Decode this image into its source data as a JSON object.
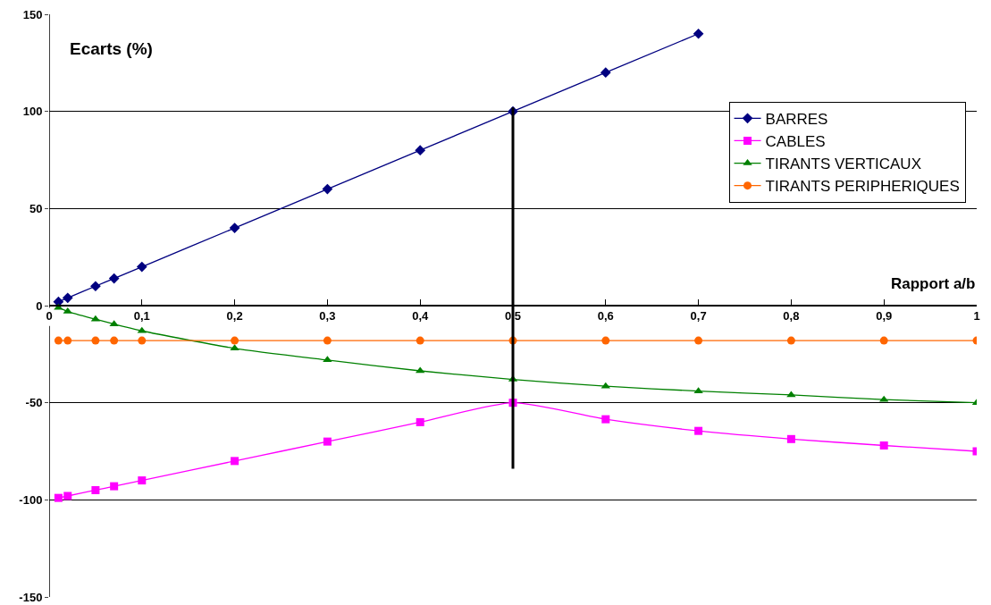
{
  "chart_data": {
    "type": "line",
    "xlabel": "Rapport a/b",
    "ylabel": "Ecarts (%)",
    "x": [
      0.01,
      0.02,
      0.05,
      0.07,
      0.1,
      0.2,
      0.3,
      0.4,
      0.5,
      0.6,
      0.7,
      0.8,
      0.9,
      1
    ],
    "series": [
      {
        "name": "BARRES",
        "color": "#000080",
        "marker": "diamond",
        "x": [
          0.01,
          0.02,
          0.05,
          0.07,
          0.1,
          0.2,
          0.3,
          0.4,
          0.5,
          0.6,
          0.7
        ],
        "values": [
          2,
          4,
          10,
          14,
          20,
          40,
          60,
          80,
          100,
          120,
          140
        ]
      },
      {
        "name": "CABLES",
        "color": "#ff00ff",
        "marker": "square",
        "values": [
          -99,
          -98,
          -95,
          -93,
          -90,
          -80,
          -70,
          -60,
          -50,
          -58.5,
          -64.5,
          -68.7,
          -72,
          -75
        ]
      },
      {
        "name": "TIRANTS VERTICAUX",
        "color": "#008000",
        "marker": "triangle",
        "values": [
          -1,
          -3,
          -7,
          -9.5,
          -13,
          -22,
          -28,
          -33.6,
          -38,
          -41.5,
          -44,
          -46,
          -48.4,
          -50
        ]
      },
      {
        "name": "TIRANTS PERIPHERIQUES",
        "color": "#ff6600",
        "marker": "circle",
        "values": [
          -18,
          -18,
          -18,
          -18,
          -18,
          -18,
          -18,
          -18,
          -18,
          -18,
          -18,
          -18,
          -18,
          -18
        ]
      }
    ],
    "xlim": [
      0,
      1
    ],
    "xticks": [
      0,
      {
        "value": 0.1,
        "label": "0,1"
      },
      {
        "value": 0.2,
        "label": "0,2"
      },
      {
        "value": 0.3,
        "label": "0,3"
      },
      {
        "value": 0.4,
        "label": "0,4"
      },
      {
        "value": 0.5,
        "label": "0,5"
      },
      {
        "value": 0.6,
        "label": "0,6"
      },
      {
        "value": 0.7,
        "label": "0,7"
      },
      {
        "value": 0.8,
        "label": "0,8"
      },
      {
        "value": 0.9,
        "label": "0,9"
      },
      1
    ],
    "ylim": [
      -150,
      150
    ],
    "yticks": [
      -150,
      -100,
      -50,
      0,
      50,
      100,
      150
    ],
    "ref_lines": [
      {
        "axis": "x",
        "value": 0.5,
        "color": "#000000"
      }
    ],
    "grid": "y",
    "legend": "right"
  }
}
